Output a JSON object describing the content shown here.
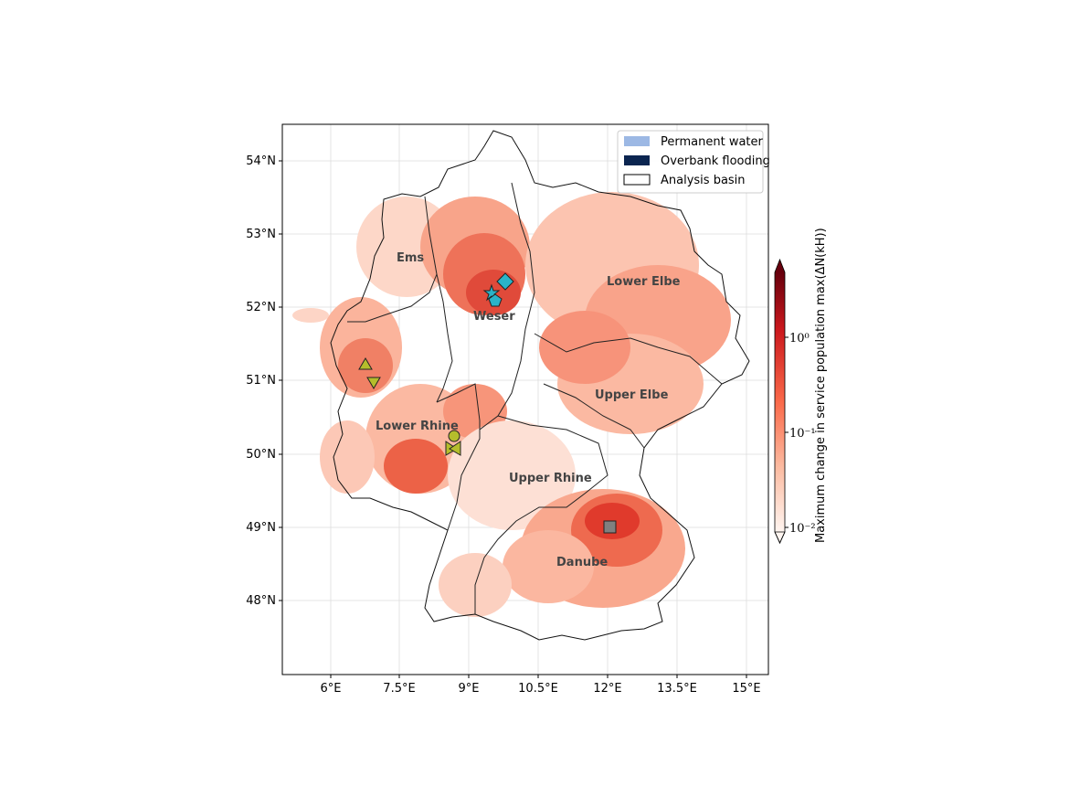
{
  "map": {
    "x_ticks": [
      "6°E",
      "7.5°E",
      "9°E",
      "10.5°E",
      "12°E",
      "13.5°E",
      "15°E"
    ],
    "y_ticks": [
      "54°N",
      "53°N",
      "52°N",
      "51°N",
      "50°N",
      "49°N",
      "48°N"
    ],
    "basins": [
      "Ems",
      "Weser",
      "Lower Elbe",
      "Upper Elbe",
      "Lower Rhine",
      "Upper Rhine",
      "Danube"
    ],
    "legend": {
      "permanent_water": "Permanent water",
      "overbank_flooding": "Overbank flooding",
      "analysis_basin": "Analysis basin",
      "colors": {
        "permanent_water": "#9cb8e4",
        "overbank_flooding": "#0b2550",
        "analysis_basin": "#ffffff"
      }
    },
    "colorbar": {
      "label": "Maximum change in service population max(ΔN(kH))",
      "ticks": [
        "10⁰",
        "10⁻¹",
        "10⁻²"
      ],
      "scale": "log",
      "cmap": [
        "#fff5f0",
        "#fcbba1",
        "#fb6a4a",
        "#cb181d",
        "#67000d"
      ]
    },
    "markers": [
      {
        "shape": "diamond",
        "color": "#2ab3c8",
        "basin": "Weser"
      },
      {
        "shape": "star",
        "color": "#2ab3c8",
        "basin": "Weser"
      },
      {
        "shape": "pentagon",
        "color": "#2ab3c8",
        "basin": "Weser"
      },
      {
        "shape": "triangle-up",
        "color": "#b5bd2c",
        "basin": "Lower Rhine"
      },
      {
        "shape": "triangle-down",
        "color": "#b5bd2c",
        "basin": "Lower Rhine"
      },
      {
        "shape": "circle",
        "color": "#b5bd2c",
        "basin": "Lower Rhine"
      },
      {
        "shape": "bowtie",
        "color": "#b5bd2c",
        "basin": "Lower Rhine"
      },
      {
        "shape": "square",
        "color": "#808080",
        "basin": "Danube"
      }
    ]
  }
}
